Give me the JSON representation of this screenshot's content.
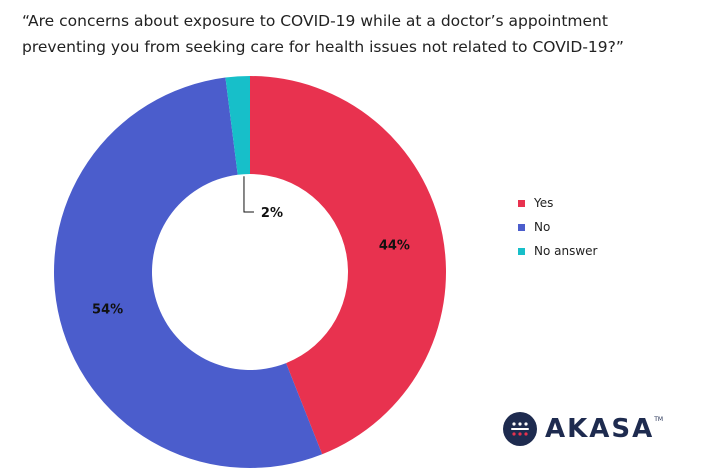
{
  "title_lines": [
    "“Are concerns about exposure to COVID-19 while at a doctor’s appointment",
    "preventing you from seeking care for health issues not related to COVID-19?”"
  ],
  "chart_data": {
    "type": "pie",
    "donut": true,
    "title": "“Are concerns about exposure to COVID-19 while at a doctor’s appointment preventing you from seeking care for health issues not related to COVID-19?”",
    "categories": [
      "Yes",
      "No",
      "No answer"
    ],
    "values": [
      44,
      54,
      2
    ],
    "labels": [
      "44%",
      "54%",
      "2%"
    ],
    "colors": [
      "#e8324f",
      "#4b5dcc",
      "#17bfc9"
    ],
    "legend_position": "right"
  },
  "brand": {
    "name": "AKASA",
    "tm": "TM",
    "logo_icon": "akasa-logo-icon",
    "color": "#1e2b4f"
  }
}
